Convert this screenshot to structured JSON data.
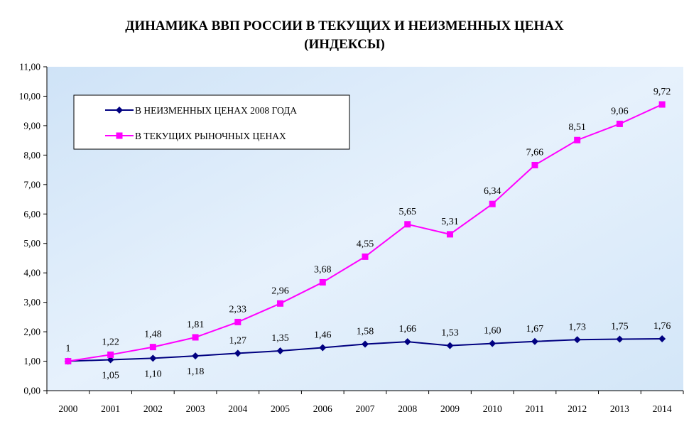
{
  "chart_data": {
    "type": "line",
    "title": "ДИНАМИКА ВВП РОССИИ В ТЕКУЩИХ И НЕИЗМЕННЫХ ЦЕНАХ",
    "subtitle": "(ИНДЕКСЫ)",
    "categories": [
      "2000",
      "2001",
      "2002",
      "2003",
      "2004",
      "2005",
      "2006",
      "2007",
      "2008",
      "2009",
      "2010",
      "2011",
      "2012",
      "2013",
      "2014"
    ],
    "ylim": [
      0,
      11
    ],
    "yticks": [
      "0,00",
      "1,00",
      "2,00",
      "3,00",
      "4,00",
      "5,00",
      "6,00",
      "7,00",
      "8,00",
      "9,00",
      "10,00",
      "11,00"
    ],
    "legend_position": "top-left",
    "grid": false,
    "series": [
      {
        "name": "В НЕИЗМЕННЫХ ЦЕНАХ 2008 ГОДА",
        "color": "#000080",
        "marker": "diamond",
        "values": [
          1.0,
          1.05,
          1.1,
          1.18,
          1.27,
          1.35,
          1.46,
          1.58,
          1.66,
          1.53,
          1.6,
          1.67,
          1.73,
          1.75,
          1.76
        ],
        "labels": [
          "",
          "1,05",
          "1,10",
          "1,18",
          "1,27",
          "1,35",
          "1,46",
          "1,58",
          "1,66",
          "1,53",
          "1,60",
          "1,67",
          "1,73",
          "1,75",
          "1,76"
        ]
      },
      {
        "name": "В ТЕКУЩИХ РЫНОЧНЫХ ЦЕНАХ",
        "color": "#FF00FF",
        "marker": "square",
        "values": [
          1.0,
          1.22,
          1.48,
          1.81,
          2.33,
          2.96,
          3.68,
          4.55,
          5.65,
          5.31,
          6.34,
          7.66,
          8.51,
          9.06,
          9.72
        ],
        "labels": [
          "1",
          "1,22",
          "1,48",
          "1,81",
          "2,33",
          "2,96",
          "3,68",
          "4,55",
          "5,65",
          "5,31",
          "6,34",
          "7,66",
          "8,51",
          "9,06",
          "9,72"
        ]
      }
    ]
  }
}
